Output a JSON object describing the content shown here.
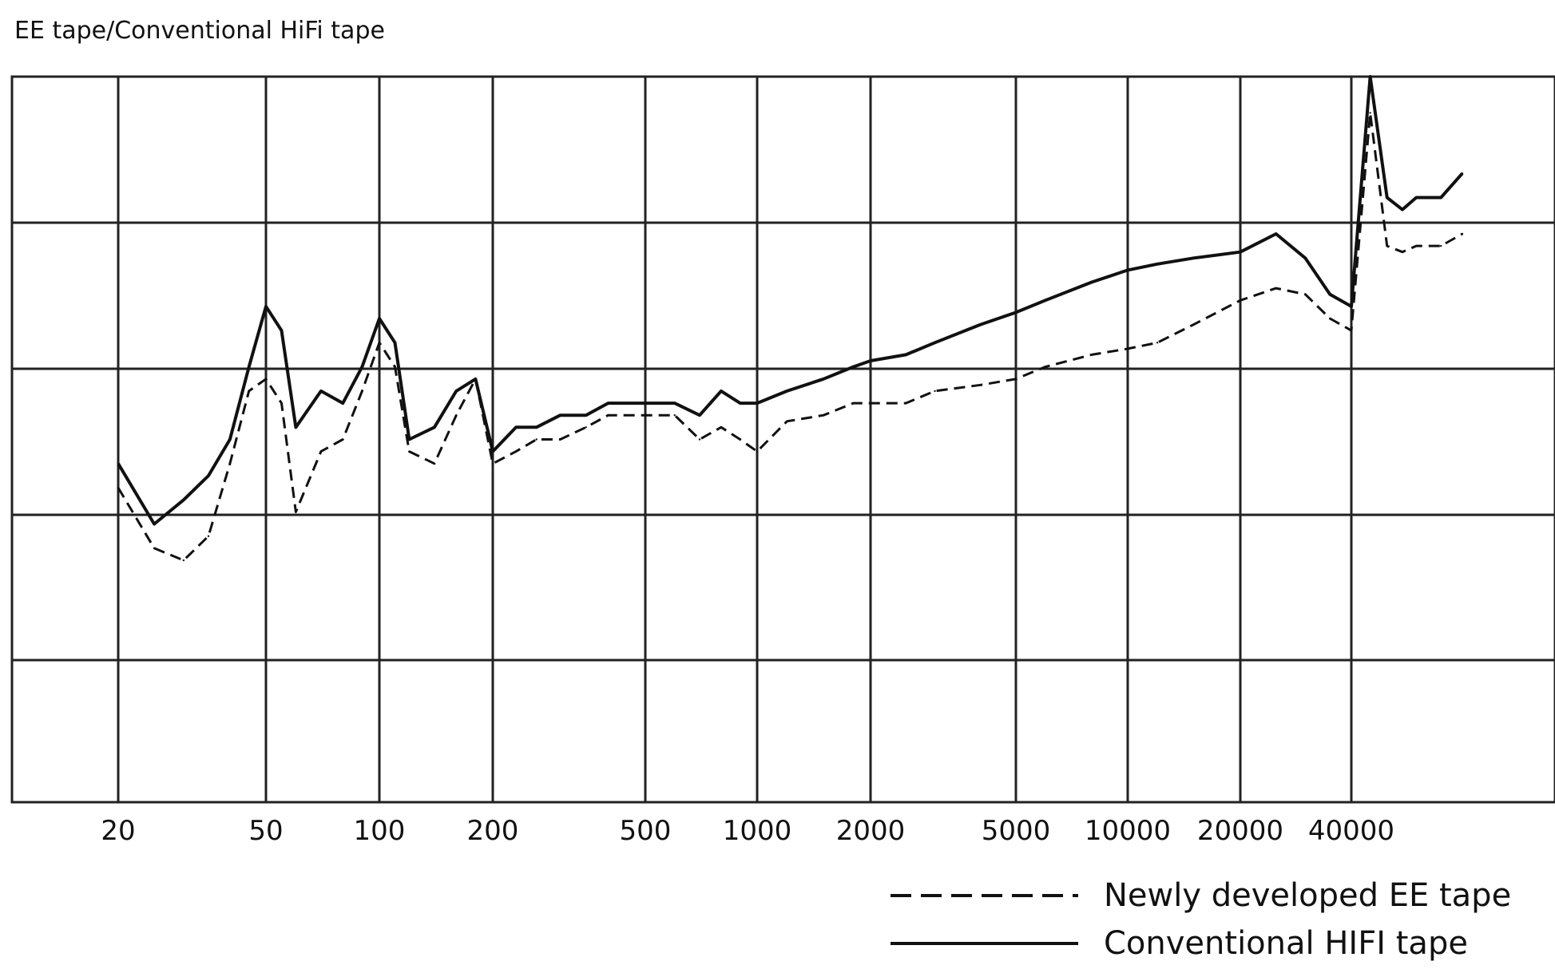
{
  "chart_data": {
    "type": "line",
    "title": "EE tape/Conventional HiFi tape",
    "xlabel": "",
    "ylabel": "",
    "x_scale": "log-like (category positions)",
    "x_tick_labels": [
      "20",
      "50",
      "100",
      "200",
      "500",
      "1000",
      "2000",
      "5000",
      "10000",
      "20000",
      "40000"
    ],
    "y_tick_labels": [],
    "grid": true,
    "legend_position": "bottom-right",
    "series": [
      {
        "name": "Newly developed EE tape",
        "style": "dashed",
        "color": "#111111",
        "x": [
          20,
          25,
          30,
          35,
          40,
          45,
          50,
          55,
          60,
          70,
          80,
          90,
          100,
          110,
          120,
          140,
          160,
          180,
          200,
          230,
          260,
          300,
          350,
          400,
          500,
          600,
          700,
          800,
          900,
          1000,
          1200,
          1500,
          1800,
          2000,
          2500,
          3000,
          4000,
          5000,
          6000,
          8000,
          10000,
          12000,
          15000,
          20000,
          25000,
          30000,
          35000,
          40000,
          45000,
          50000,
          55000,
          60000,
          70000,
          80000
        ],
        "y": [
          2.6,
          2.1,
          2.0,
          2.2,
          2.8,
          3.4,
          3.5,
          3.3,
          2.4,
          2.9,
          3.0,
          3.4,
          3.8,
          3.6,
          2.9,
          2.8,
          3.2,
          3.5,
          2.8,
          2.9,
          3.0,
          3.0,
          3.1,
          3.2,
          3.2,
          3.2,
          3.0,
          3.1,
          3.0,
          2.9,
          3.15,
          3.2,
          3.3,
          3.3,
          3.3,
          3.4,
          3.45,
          3.5,
          3.6,
          3.7,
          3.75,
          3.8,
          3.95,
          4.15,
          4.25,
          4.2,
          4.0,
          3.9,
          5.7,
          4.6,
          4.55,
          4.6,
          4.6,
          4.7
        ]
      },
      {
        "name": "Conventional HIFI tape",
        "style": "solid",
        "color": "#111111",
        "x": [
          20,
          25,
          30,
          35,
          40,
          45,
          50,
          55,
          60,
          70,
          80,
          90,
          100,
          110,
          120,
          140,
          160,
          180,
          200,
          230,
          260,
          300,
          350,
          400,
          500,
          600,
          700,
          800,
          900,
          1000,
          1200,
          1500,
          1800,
          2000,
          2500,
          3000,
          4000,
          5000,
          6000,
          8000,
          10000,
          12000,
          15000,
          20000,
          25000,
          30000,
          35000,
          40000,
          45000,
          50000,
          55000,
          60000,
          70000,
          80000
        ],
        "y": [
          2.8,
          2.3,
          2.5,
          2.7,
          3.0,
          3.6,
          4.1,
          3.9,
          3.1,
          3.4,
          3.3,
          3.6,
          4.0,
          3.8,
          3.0,
          3.1,
          3.4,
          3.5,
          2.9,
          3.1,
          3.1,
          3.2,
          3.2,
          3.3,
          3.3,
          3.3,
          3.2,
          3.4,
          3.3,
          3.3,
          3.4,
          3.5,
          3.6,
          3.65,
          3.7,
          3.8,
          3.95,
          4.05,
          4.15,
          4.3,
          4.4,
          4.45,
          4.5,
          4.55,
          4.7,
          4.5,
          4.2,
          4.1,
          6.0,
          5.0,
          4.9,
          5.0,
          5.0,
          5.2
        ]
      }
    ]
  }
}
